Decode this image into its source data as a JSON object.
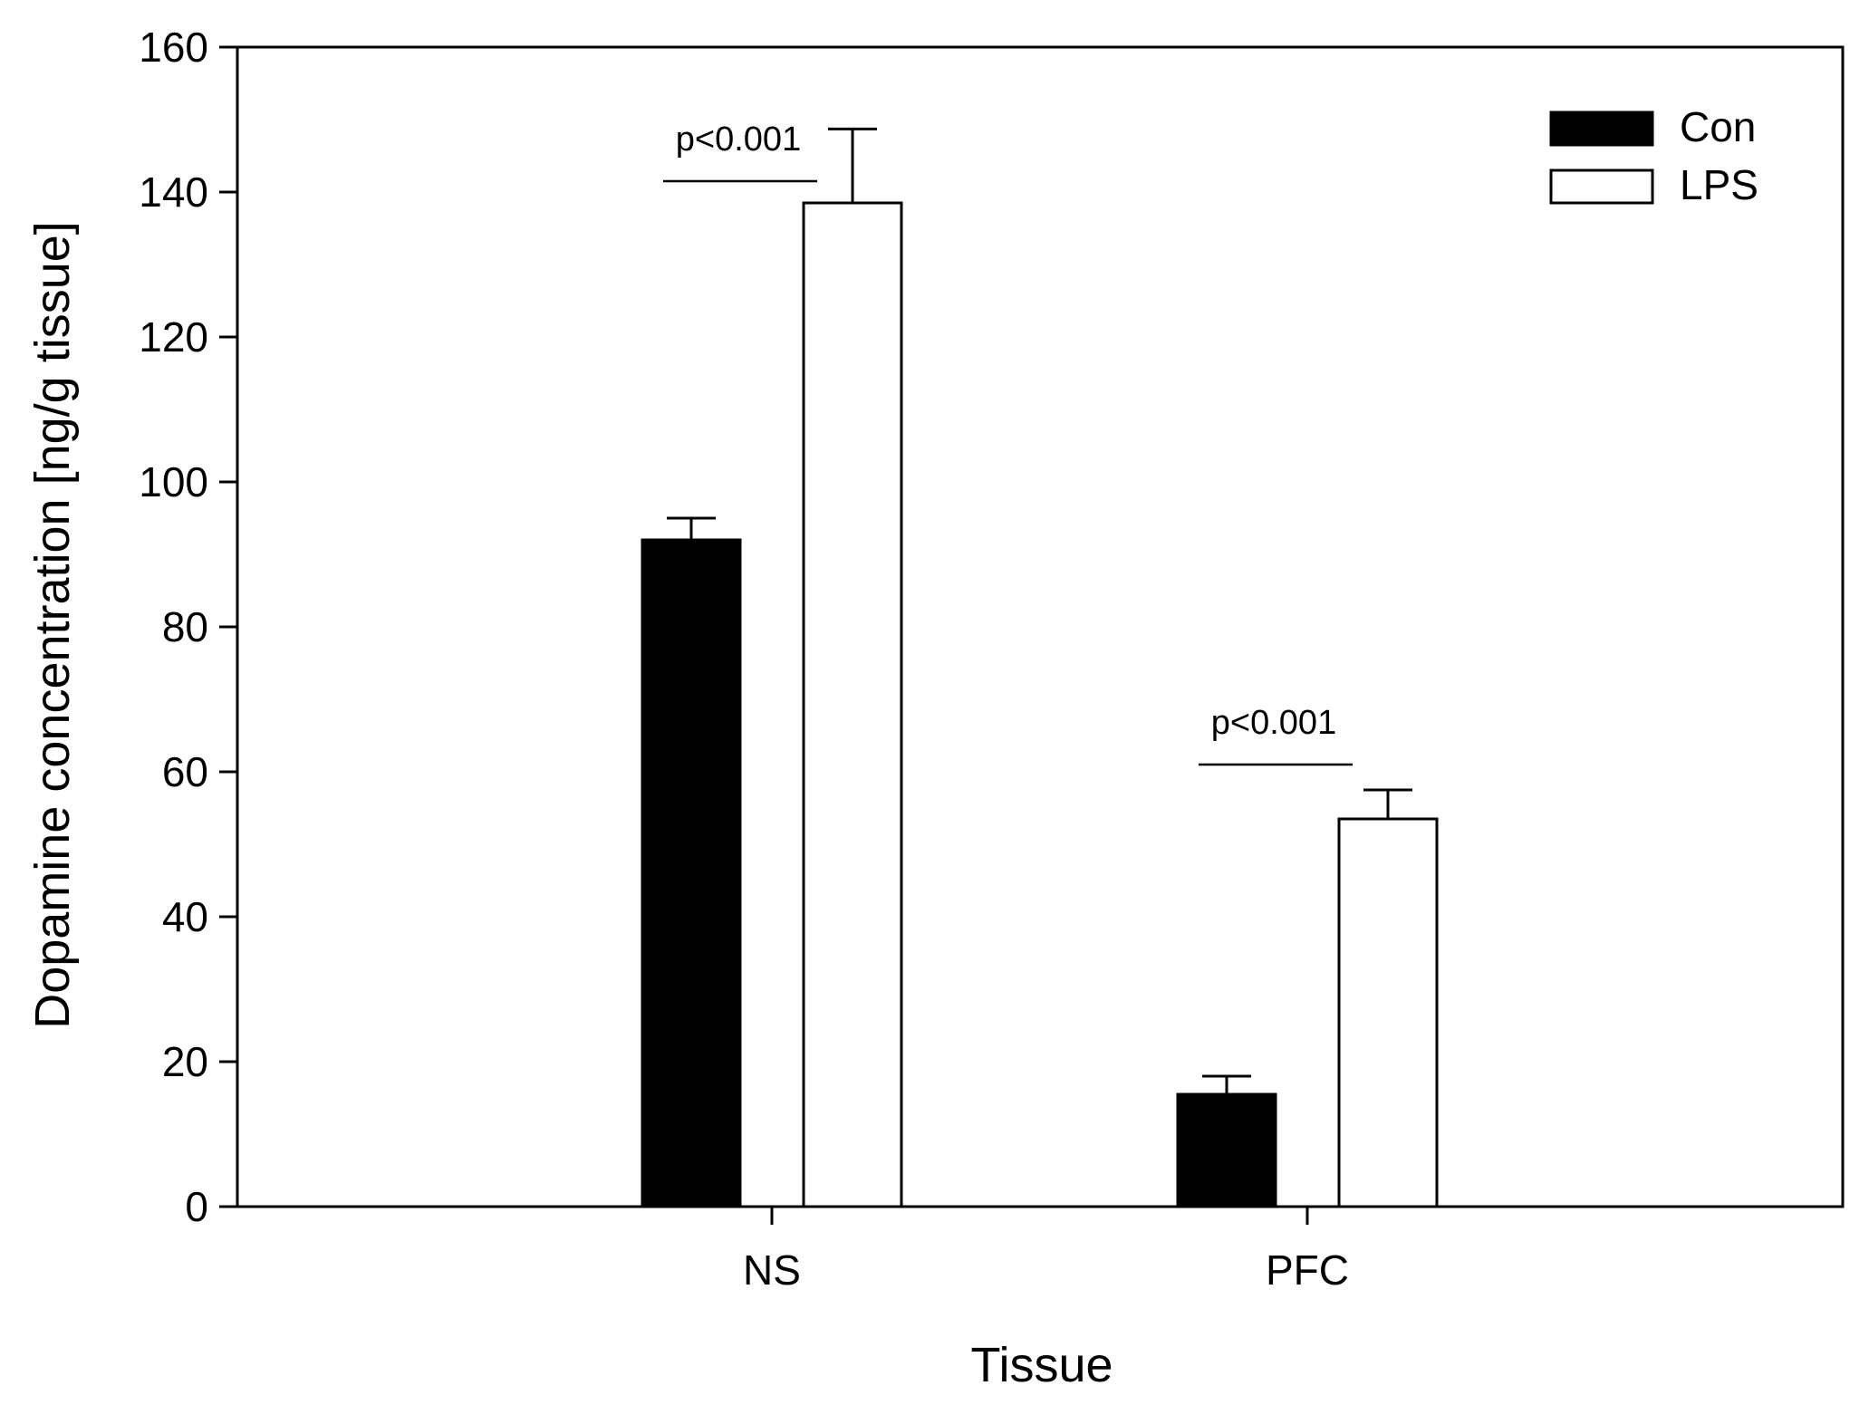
{
  "chart_data": {
    "type": "bar",
    "categories": [
      "NS",
      "PFC"
    ],
    "series": [
      {
        "name": "Con",
        "values": [
          92,
          15.5
        ],
        "errors": [
          3,
          2.5
        ],
        "color": "#000000"
      },
      {
        "name": "LPS",
        "values": [
          138.5,
          53.5
        ],
        "errors": [
          10.2,
          4
        ],
        "color": "#ffffff"
      }
    ],
    "xlabel": "Tissue",
    "ylabel": "Dopamine concentration [ng/g tissue]",
    "ylim": [
      0,
      160
    ],
    "yticks": [
      0,
      20,
      40,
      60,
      80,
      100,
      120,
      140,
      160
    ],
    "grid": false,
    "legend_position": "top-right",
    "annotations": [
      {
        "text": "p<0.001",
        "category": "NS",
        "y": 141.5
      },
      {
        "text": "p<0.001",
        "category": "PFC",
        "y": 61
      }
    ]
  }
}
